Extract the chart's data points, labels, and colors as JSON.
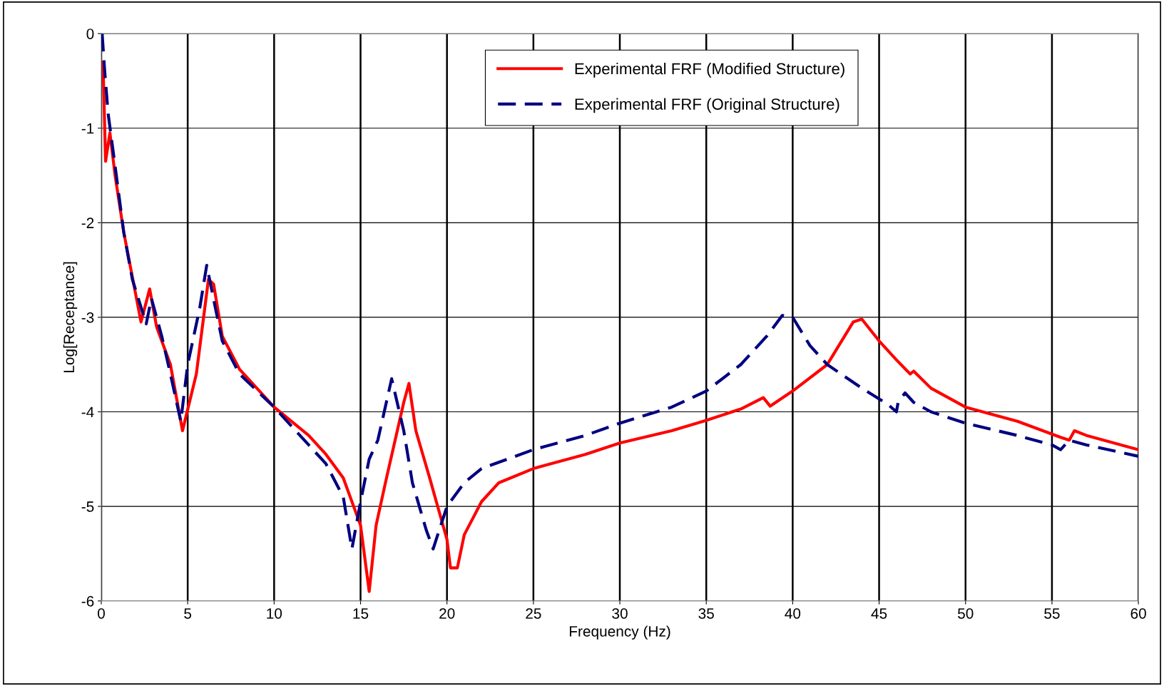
{
  "chart_data": {
    "type": "line",
    "xlabel": "Frequency (Hz)",
    "ylabel": "Log[Receptance]",
    "xlim": [
      0,
      60
    ],
    "ylim": [
      -6,
      0
    ],
    "xticks": [
      0,
      5,
      10,
      15,
      20,
      25,
      30,
      35,
      40,
      45,
      50,
      55,
      60
    ],
    "yticks": [
      -6,
      -5,
      -4,
      -3,
      -2,
      -1,
      0
    ],
    "grid": true,
    "legend": "top",
    "series": [
      {
        "name": "Experimental FRF (Modified Structure)",
        "color": "#ff0000",
        "line_style": "solid",
        "x": [
          0.1,
          0.2,
          0.25,
          0.5,
          0.8,
          1.3,
          2.3,
          2.8,
          3.2,
          4,
          4.7,
          5.5,
          6.2,
          6.5,
          7,
          8,
          10,
          12,
          13,
          14,
          15,
          15.5,
          15.9,
          16.5,
          17.5,
          17.8,
          18.2,
          19,
          20,
          20.2,
          20.6,
          21,
          22,
          23,
          25,
          28,
          30,
          33,
          35,
          37,
          38.3,
          38.7,
          40,
          42,
          43.5,
          44,
          45,
          46,
          46.8,
          47,
          48,
          50,
          53,
          55.5,
          56,
          56.3,
          57,
          60
        ],
        "values": [
          -0.3,
          -1.0,
          -1.35,
          -1.05,
          -1.5,
          -2.1,
          -3.05,
          -2.7,
          -3.1,
          -3.5,
          -4.2,
          -3.6,
          -2.6,
          -2.65,
          -3.2,
          -3.55,
          -3.95,
          -4.25,
          -4.45,
          -4.7,
          -5.2,
          -5.9,
          -5.2,
          -4.7,
          -3.9,
          -3.7,
          -4.2,
          -4.7,
          -5.35,
          -5.65,
          -5.65,
          -5.3,
          -4.95,
          -4.75,
          -4.6,
          -4.45,
          -4.33,
          -4.2,
          -4.09,
          -3.97,
          -3.85,
          -3.94,
          -3.78,
          -3.5,
          -3.05,
          -3.02,
          -3.25,
          -3.45,
          -3.6,
          -3.57,
          -3.75,
          -3.95,
          -4.1,
          -4.27,
          -4.3,
          -4.2,
          -4.25,
          -4.4
        ]
      },
      {
        "name": "Experimental FRF (Original Structure)",
        "color": "#000080",
        "line_style": "dashed",
        "x": [
          0.05,
          0.2,
          0.4,
          0.8,
          1.3,
          1.8,
          2.6,
          2.9,
          3.5,
          4,
          4.6,
          5,
          5.7,
          6.1,
          6.6,
          7,
          8,
          10,
          12,
          13,
          14,
          14.5,
          15,
          15.5,
          16,
          16.8,
          17.5,
          18,
          18.8,
          19.2,
          20,
          21,
          22,
          25,
          28,
          30,
          33,
          35,
          37,
          38.5,
          39.4,
          40,
          41,
          42,
          44,
          45.5,
          46,
          46.1,
          46.5,
          47,
          48,
          50,
          53,
          55,
          55.5,
          56,
          57,
          60
        ],
        "values": [
          0,
          -0.4,
          -0.85,
          -1.4,
          -2.1,
          -2.6,
          -3.07,
          -2.8,
          -3.2,
          -3.6,
          -4.1,
          -3.5,
          -2.9,
          -2.45,
          -2.9,
          -3.25,
          -3.6,
          -3.95,
          -4.35,
          -4.55,
          -4.9,
          -5.45,
          -4.95,
          -4.5,
          -4.3,
          -3.65,
          -4.2,
          -4.75,
          -5.25,
          -5.45,
          -5,
          -4.75,
          -4.6,
          -4.4,
          -4.25,
          -4.12,
          -3.95,
          -3.78,
          -3.5,
          -3.2,
          -2.98,
          -3.0,
          -3.3,
          -3.5,
          -3.75,
          -3.92,
          -4.0,
          -3.9,
          -3.8,
          -3.9,
          -4.0,
          -4.12,
          -4.25,
          -4.35,
          -4.4,
          -4.3,
          -4.35,
          -4.47
        ]
      }
    ]
  }
}
